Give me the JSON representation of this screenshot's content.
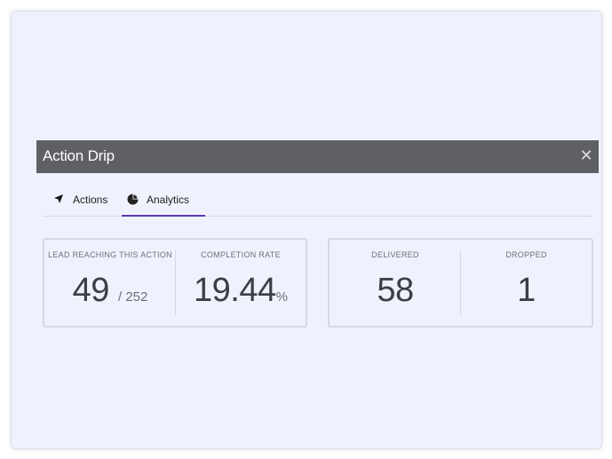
{
  "dialog": {
    "title": "Action Drip",
    "close_glyph": "✕"
  },
  "tabs": [
    {
      "label": "Actions",
      "icon": "navigation-arrow-icon",
      "active": false
    },
    {
      "label": "Analytics",
      "icon": "pie-chart-icon",
      "active": true
    }
  ],
  "stats_left": {
    "lead": {
      "label": "LEAD REACHING THIS ACTION",
      "value": "49",
      "total": "/ 252"
    },
    "completion": {
      "label": "COMPLETION RATE",
      "value": "19.44",
      "unit": "%"
    }
  },
  "stats_right": {
    "delivered": {
      "label": "DELIVERED",
      "value": "58"
    },
    "dropped": {
      "label": "DROPPED",
      "value": "1"
    }
  },
  "colors": {
    "titlebar": "#5f6064",
    "background": "#eff2fc",
    "accent": "#5c35b6"
  }
}
